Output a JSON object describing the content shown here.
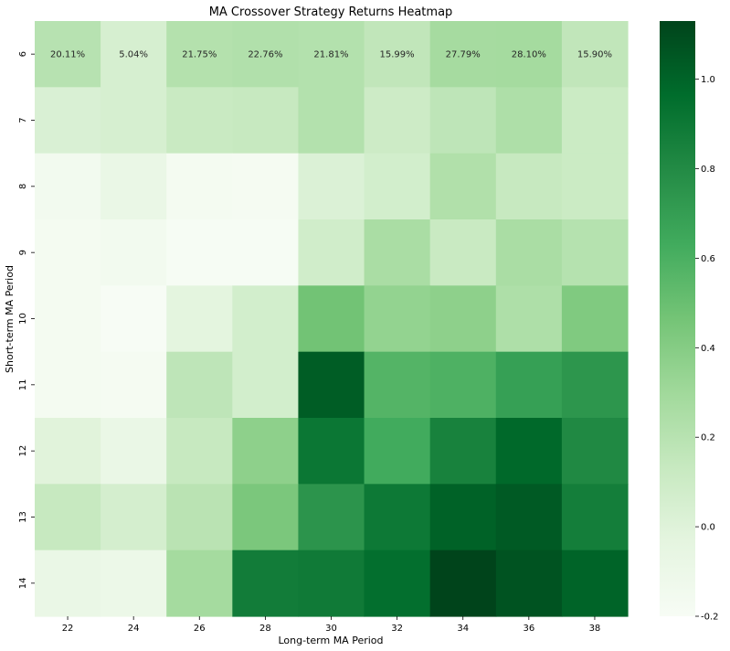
{
  "chart_data": {
    "type": "heatmap",
    "title": "MA Crossover Strategy Returns Heatmap",
    "xlabel": "Long-term MA Period",
    "ylabel": "Short-term MA Period",
    "x_categories": [
      "22",
      "24",
      "26",
      "28",
      "30",
      "32",
      "34",
      "36",
      "38"
    ],
    "y_categories": [
      "6",
      "7",
      "8",
      "9",
      "10",
      "11",
      "12",
      "13",
      "14"
    ],
    "values": [
      [
        0.2011,
        0.0504,
        0.2175,
        0.2276,
        0.2181,
        0.1599,
        0.2779,
        0.281,
        0.159
      ],
      [
        0.03,
        0.05,
        0.12,
        0.13,
        0.22,
        0.1,
        0.17,
        0.24,
        0.11
      ],
      [
        -0.15,
        -0.08,
        -0.17,
        -0.18,
        0.02,
        0.07,
        0.23,
        0.13,
        0.11
      ],
      [
        -0.17,
        -0.15,
        -0.19,
        -0.19,
        0.08,
        0.26,
        0.12,
        0.26,
        0.21
      ],
      [
        -0.17,
        -0.2,
        -0.03,
        0.07,
        0.47,
        0.35,
        0.37,
        0.24,
        0.42
      ],
      [
        -0.17,
        -0.18,
        0.17,
        0.07,
        1.03,
        0.57,
        0.59,
        0.69,
        0.74
      ],
      [
        -0.01,
        -0.08,
        0.13,
        0.37,
        0.91,
        0.63,
        0.85,
        0.98,
        0.81
      ],
      [
        0.13,
        0.06,
        0.19,
        0.44,
        0.75,
        0.9,
        1.01,
        1.04,
        0.87
      ],
      [
        -0.08,
        -0.1,
        0.28,
        0.88,
        0.89,
        0.95,
        1.13,
        1.07,
        1.0
      ]
    ],
    "annotations": [
      [
        "20.11%",
        "5.04%",
        "21.75%",
        "22.76%",
        "21.81%",
        "15.99%",
        "27.79%",
        "28.10%",
        "15.90%"
      ]
    ],
    "colorbar": {
      "min": -0.2,
      "max": 1.13,
      "ticks": [
        "-0.2",
        "0.0",
        "0.2",
        "0.4",
        "0.6",
        "0.8",
        "1.0"
      ],
      "tick_values": [
        -0.2,
        0.0,
        0.2,
        0.4,
        0.6,
        0.8,
        1.0
      ]
    },
    "colormap": "Greens",
    "colormap_stops": [
      "#f7fcf5",
      "#e5f5e0",
      "#c7e9c0",
      "#a1d99b",
      "#74c476",
      "#41ab5d",
      "#238b45",
      "#006d2c",
      "#00441b"
    ],
    "grid": false
  }
}
